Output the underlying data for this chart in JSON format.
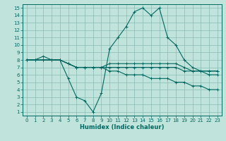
{
  "xlabel": "Humidex (Indice chaleur)",
  "bg_color": "#c0e4dc",
  "grid_color": "#88bbb4",
  "line_color": "#006860",
  "xlim": [
    -0.5,
    23.5
  ],
  "ylim": [
    0.5,
    15.5
  ],
  "x_ticks": [
    0,
    1,
    2,
    3,
    4,
    5,
    6,
    7,
    8,
    9,
    10,
    11,
    12,
    13,
    14,
    15,
    16,
    17,
    18,
    19,
    20,
    21,
    22,
    23
  ],
  "y_ticks": [
    1,
    2,
    3,
    4,
    5,
    6,
    7,
    8,
    9,
    10,
    11,
    12,
    13,
    14,
    15
  ],
  "series": [
    [
      8,
      8,
      8.5,
      8,
      8,
      5.5,
      3.0,
      2.5,
      1.0,
      3.5,
      9.5,
      11.0,
      12.5,
      14.5,
      15.0,
      14.0,
      15.0,
      11.0,
      10.0,
      8.0,
      7.0,
      6.5,
      6.5,
      6.5
    ],
    [
      8,
      8,
      8.0,
      8,
      8,
      7.5,
      7.0,
      7.0,
      7.0,
      7.0,
      7.5,
      7.5,
      7.5,
      7.5,
      7.5,
      7.5,
      7.5,
      7.5,
      7.5,
      7.0,
      6.5,
      6.5,
      6.5,
      6.5
    ],
    [
      8,
      8,
      8.0,
      8,
      8,
      7.5,
      7.0,
      7.0,
      7.0,
      7.0,
      7.0,
      7.0,
      7.0,
      7.0,
      7.0,
      7.0,
      7.0,
      7.0,
      7.0,
      6.5,
      6.5,
      6.5,
      6.0,
      6.0
    ],
    [
      8,
      8,
      8.0,
      8,
      8,
      7.5,
      7.0,
      7.0,
      7.0,
      7.0,
      6.5,
      6.5,
      6.0,
      6.0,
      6.0,
      5.5,
      5.5,
      5.5,
      5.0,
      5.0,
      4.5,
      4.5,
      4.0,
      4.0
    ]
  ]
}
